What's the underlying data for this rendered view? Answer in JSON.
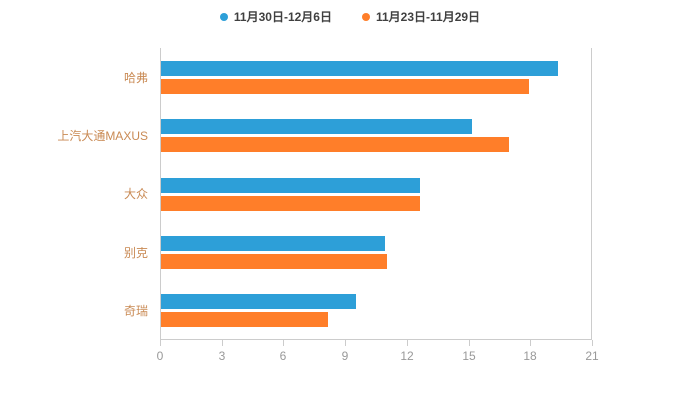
{
  "chart_data": {
    "type": "bar",
    "orientation": "horizontal",
    "title": "",
    "categories": [
      "哈弗",
      "上汽大通MAXUS",
      "大众",
      "别克",
      "奇瑞"
    ],
    "series": [
      {
        "name": "11月30日-12月6日",
        "color": "#2D9FD8",
        "values": [
          19.3,
          15.1,
          12.6,
          10.9,
          9.5
        ]
      },
      {
        "name": "11月23日-11月29日",
        "color": "#FF7E29",
        "values": [
          17.9,
          16.9,
          12.6,
          11.0,
          8.1
        ]
      }
    ],
    "xlim": [
      0,
      21
    ],
    "xticks": [
      0,
      3,
      6,
      9,
      12,
      15,
      18,
      21
    ],
    "grid": false,
    "legend_position": "top",
    "axis_color": "#cccccc",
    "tick_label_color": "#999999",
    "category_label_color": "#C98A54",
    "legend_text_color": "#404040"
  }
}
